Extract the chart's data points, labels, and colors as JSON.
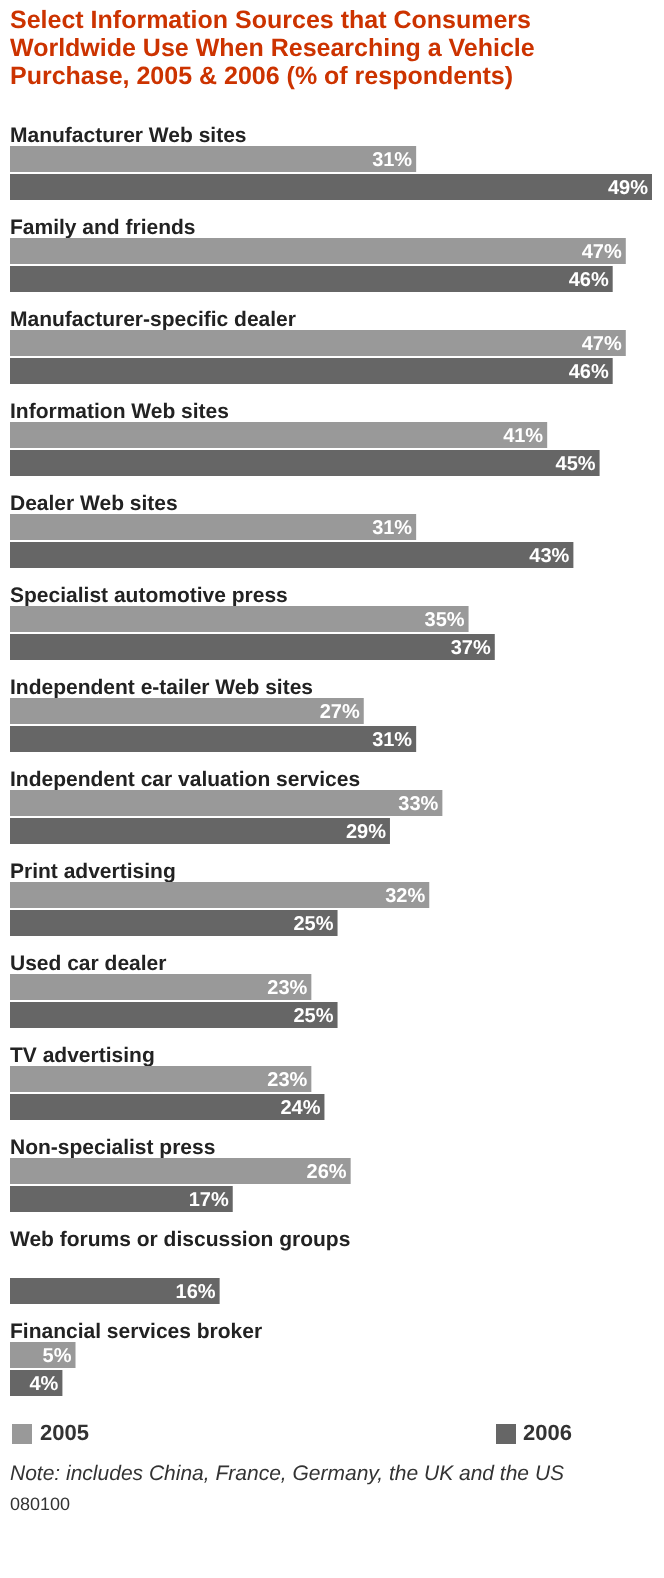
{
  "chart_data": {
    "type": "bar",
    "orientation": "horizontal",
    "title": "Select Information Sources that Consumers Worldwide Use When Researching a Vehicle Purchase, 2005 & 2006 (% of respondents)",
    "categories": [
      "Manufacturer Web sites",
      "Family and friends",
      "Manufacturer-specific dealer",
      "Information Web sites",
      "Dealer Web sites",
      "Specialist automotive press",
      "Independent e-tailer Web sites",
      "Independent car valuation services",
      "Print advertising",
      "Used car dealer",
      "TV advertising",
      "Non-specialist press",
      "Web forums or discussion groups",
      "Financial services broker"
    ],
    "series": [
      {
        "name": "2005",
        "color": "#999999",
        "values": [
          31,
          47,
          47,
          41,
          31,
          35,
          27,
          33,
          32,
          23,
          23,
          26,
          null,
          5
        ],
        "value_labels": [
          "31%",
          "47%",
          "47%",
          "41%",
          "31%",
          "35%",
          "27%",
          "33%",
          "32%",
          "23%",
          "23%",
          "26%",
          null,
          "5%"
        ]
      },
      {
        "name": "2006",
        "color": "#666666",
        "values": [
          49,
          46,
          46,
          45,
          43,
          37,
          31,
          29,
          25,
          25,
          24,
          17,
          16,
          4
        ],
        "value_labels": [
          "49%",
          "46%",
          "46%",
          "45%",
          "43%",
          "37%",
          "31%",
          "29%",
          "25%",
          "25%",
          "24%",
          "17%",
          "16%",
          "4%"
        ]
      }
    ],
    "data_labels": true,
    "legend": "bottom",
    "annotations": [
      "Note: includes China, France, Germany, the UK and the US",
      "080100"
    ]
  }
}
